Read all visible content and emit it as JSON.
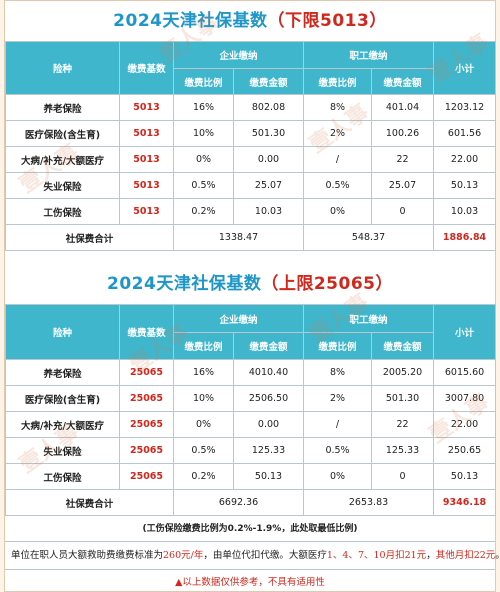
{
  "section1": {
    "title_main": "2024天津社保基数",
    "title_paren": "（下限5013）",
    "headers": {
      "type": "险种",
      "base": "缴费基数",
      "company": "企业缴纳",
      "employee": "职工缴纳",
      "ratio": "缴费比例",
      "amount": "缴费金额",
      "subtotal": "小计"
    },
    "rows": [
      {
        "name": "养老保险",
        "base": "5013",
        "c_ratio": "16%",
        "c_amt": "802.08",
        "e_ratio": "8%",
        "e_amt": "401.04",
        "sub": "1203.12"
      },
      {
        "name": "医疗保险(含生育)",
        "base": "5013",
        "c_ratio": "10%",
        "c_amt": "501.30",
        "e_ratio": "2%",
        "e_amt": "100.26",
        "sub": "601.56"
      },
      {
        "name": "大病/补充/大额医疗",
        "base": "5013",
        "c_ratio": "0%",
        "c_amt": "0.00",
        "e_ratio": "/",
        "e_amt": "22",
        "sub": "22.00"
      },
      {
        "name": "失业保险",
        "base": "5013",
        "c_ratio": "0.5%",
        "c_amt": "25.07",
        "e_ratio": "0.5%",
        "e_amt": "25.07",
        "sub": "50.13"
      },
      {
        "name": "工伤保险",
        "base": "5013",
        "c_ratio": "0.2%",
        "c_amt": "10.03",
        "e_ratio": "0%",
        "e_amt": "0",
        "sub": "10.03"
      }
    ],
    "total": {
      "label": "社保费合计",
      "company": "1338.47",
      "employee": "548.37",
      "sum": "1886.84"
    }
  },
  "section2": {
    "title_main": "2024天津社保基数",
    "title_paren": "（上限25065）",
    "headers": {
      "type": "险种",
      "base": "缴费基数",
      "company": "企业缴纳",
      "employee": "职工缴纳",
      "ratio": "缴费比例",
      "amount": "缴费金额",
      "subtotal": "小计"
    },
    "rows": [
      {
        "name": "养老保险",
        "base": "25065",
        "c_ratio": "16%",
        "c_amt": "4010.40",
        "e_ratio": "8%",
        "e_amt": "2005.20",
        "sub": "6015.60"
      },
      {
        "name": "医疗保险(含生育)",
        "base": "25065",
        "c_ratio": "10%",
        "c_amt": "2506.50",
        "e_ratio": "2%",
        "e_amt": "501.30",
        "sub": "3007.80"
      },
      {
        "name": "大病/补充/大额医疗",
        "base": "25065",
        "c_ratio": "0%",
        "c_amt": "0.00",
        "e_ratio": "/",
        "e_amt": "22",
        "sub": "22.00"
      },
      {
        "name": "失业保险",
        "base": "25065",
        "c_ratio": "0.5%",
        "c_amt": "125.33",
        "e_ratio": "0.5%",
        "e_amt": "125.33",
        "sub": "250.65"
      },
      {
        "name": "工伤保险",
        "base": "25065",
        "c_ratio": "0.2%",
        "c_amt": "50.13",
        "e_ratio": "0%",
        "e_amt": "0",
        "sub": "50.13"
      }
    ],
    "total": {
      "label": "社保费合计",
      "company": "6692.36",
      "employee": "2653.83",
      "sum": "9346.18"
    }
  },
  "notes": {
    "bold_note": "(工伤保险缴费比例为0.2%-1.9%，此处取最低比例)",
    "line_a": "单位在职人员大额救助费缴费标准为",
    "line_a_red1": "260元/年",
    "line_a_mid": "，由单位代扣代缴。大额医疗",
    "line_a_red2": "1、4、7、10月扣21元",
    "line_a_end": "，",
    "line_a_red3": "其他月扣22元",
    "line_a_tail": "。",
    "warning": "▲以上数据仅供参考，不具有适用性"
  },
  "watermark": "壹人事",
  "colors": {
    "header_bg": "#3fb6cc",
    "title_blue": "#1f96c8",
    "accent_red": "#d0281d"
  }
}
